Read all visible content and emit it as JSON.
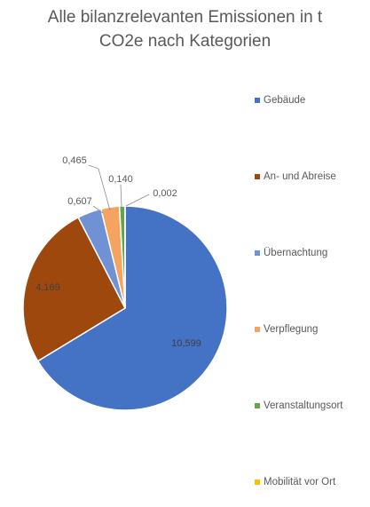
{
  "chart_data": {
    "type": "pie",
    "title_line1": "Alle bilanzrelevanten Emissionen in t",
    "title_line2": "CO2e nach Kategorien",
    "categories": [
      "Gebäude",
      "An- und Abreise",
      "Übernachtung",
      "Verpflegung",
      "Veranstaltungsort",
      "Mobilität vor Ort"
    ],
    "values": [
      10.599,
      4.169,
      0.607,
      0.465,
      0.14,
      0.002
    ],
    "data_labels": [
      "10,599",
      "4,169",
      "0,607",
      "0,465",
      "0,140",
      "0,002"
    ],
    "colors": [
      "#4472C4",
      "#9E480E",
      "#7092D4",
      "#F4A460",
      "#5FA64F",
      "#F2C400"
    ],
    "legend_position": "right"
  }
}
